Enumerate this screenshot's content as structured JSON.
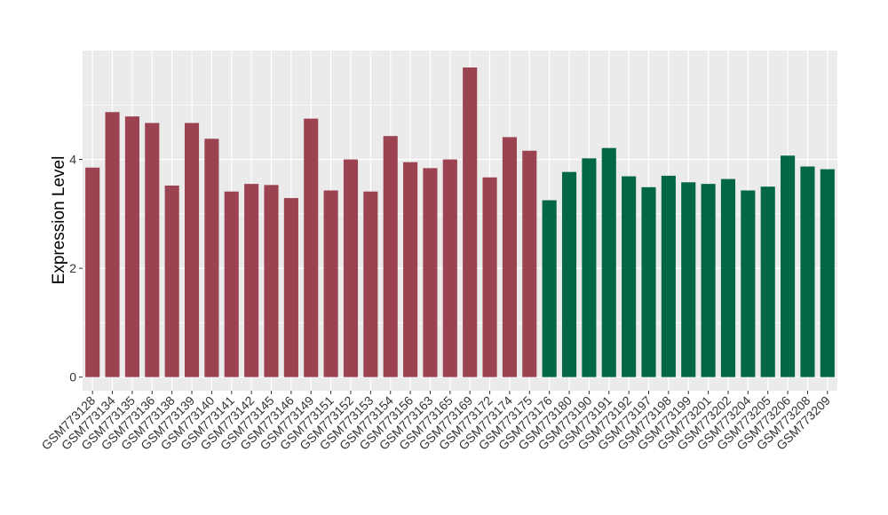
{
  "chart_data": {
    "type": "bar",
    "ylabel": "Expression Level",
    "xlabel": "",
    "ylim": [
      -0.25,
      6.0
    ],
    "yticks": [
      0,
      2,
      4
    ],
    "grid": true,
    "background": "#EBEBEB",
    "grid_color": "#FFFFFF",
    "colors": {
      "group1": "#9B4350",
      "group2": "#036745"
    },
    "categories": [
      "GSM773128",
      "GSM773134",
      "GSM773135",
      "GSM773136",
      "GSM773138",
      "GSM773139",
      "GSM773140",
      "GSM773141",
      "GSM773142",
      "GSM773145",
      "GSM773146",
      "GSM773149",
      "GSM773151",
      "GSM773152",
      "GSM773153",
      "GSM773154",
      "GSM773156",
      "GSM773163",
      "GSM773165",
      "GSM773169",
      "GSM773172",
      "GSM773174",
      "GSM773175",
      "GSM773176",
      "GSM773180",
      "GSM773190",
      "GSM773191",
      "GSM773192",
      "GSM773197",
      "GSM773198",
      "GSM773199",
      "GSM773201",
      "GSM773202",
      "GSM773204",
      "GSM773205",
      "GSM773206",
      "GSM773208",
      "GSM773209"
    ],
    "values": [
      3.85,
      4.87,
      4.79,
      4.67,
      3.52,
      4.67,
      4.38,
      3.41,
      3.55,
      3.53,
      3.29,
      4.75,
      3.43,
      4.0,
      3.41,
      4.43,
      3.95,
      3.84,
      4.0,
      5.69,
      3.67,
      4.41,
      4.16,
      3.25,
      3.77,
      4.02,
      4.21,
      3.69,
      3.49,
      3.7,
      3.58,
      3.55,
      3.64,
      3.43,
      3.5,
      4.07,
      3.87,
      3.82
    ],
    "groups": [
      1,
      1,
      1,
      1,
      1,
      1,
      1,
      1,
      1,
      1,
      1,
      1,
      1,
      1,
      1,
      1,
      1,
      1,
      1,
      1,
      1,
      1,
      1,
      2,
      2,
      2,
      2,
      2,
      2,
      2,
      2,
      2,
      2,
      2,
      2,
      2,
      2,
      2
    ]
  }
}
